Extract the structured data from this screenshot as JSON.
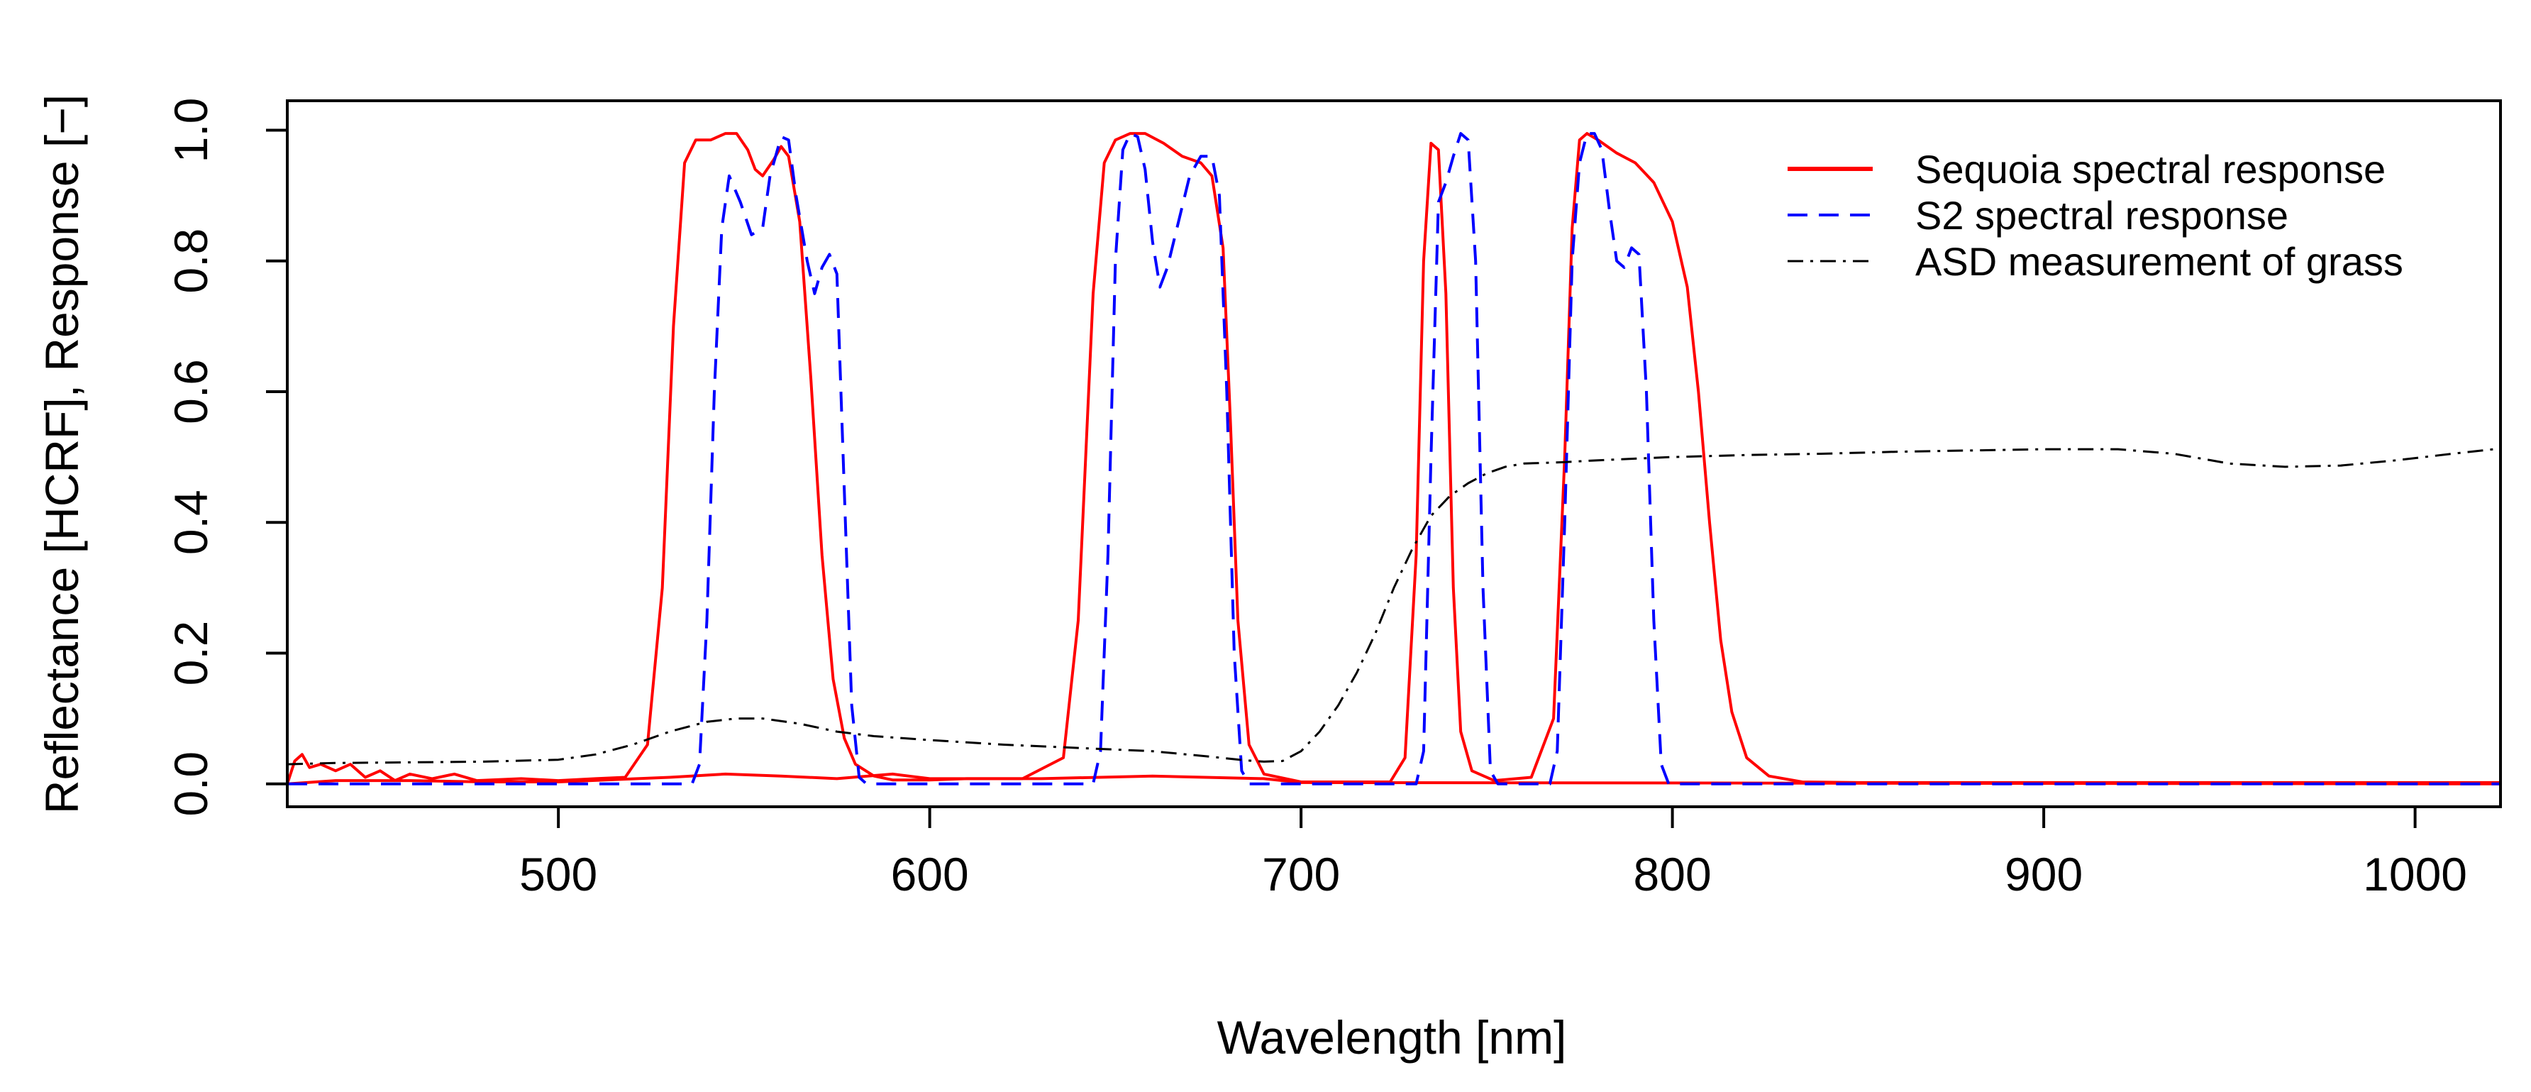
{
  "chart_data": {
    "type": "line",
    "title": "",
    "xlabel": "Wavelength [nm]",
    "ylabel": "Reflectance [HCRF], Response [−]",
    "xlim": [
      427,
      1023
    ],
    "ylim": [
      -0.035,
      1.045
    ],
    "x_ticks": [
      500,
      600,
      700,
      800,
      900,
      1000
    ],
    "x_tick_labels": [
      "500",
      "600",
      "700",
      "800",
      "900",
      "1000"
    ],
    "y_ticks": [
      0.0,
      0.2,
      0.4,
      0.6,
      0.8,
      1.0
    ],
    "y_tick_labels": [
      "0.0",
      "0.2",
      "0.4",
      "0.6",
      "0.8",
      "1.0"
    ],
    "grid": false,
    "legend_position": "top-right",
    "series": [
      {
        "name": "Sequoia spectral response",
        "color": "#ff0000",
        "dash": "solid",
        "segments": [
          [
            [
              427,
              0.0
            ],
            [
              429,
              0.035
            ],
            [
              431,
              0.045
            ],
            [
              433,
              0.025
            ],
            [
              436,
              0.03
            ],
            [
              440,
              0.02
            ],
            [
              444,
              0.03
            ],
            [
              448,
              0.01
            ],
            [
              452,
              0.02
            ],
            [
              456,
              0.005
            ],
            [
              460,
              0.015
            ],
            [
              466,
              0.008
            ],
            [
              472,
              0.015
            ],
            [
              478,
              0.005
            ],
            [
              490,
              0.008
            ],
            [
              500,
              0.005
            ],
            [
              510,
              0.008
            ],
            [
              518,
              0.01
            ],
            [
              524,
              0.06
            ],
            [
              528,
              0.3
            ],
            [
              531,
              0.7
            ],
            [
              534,
              0.95
            ],
            [
              537,
              0.985
            ],
            [
              541,
              0.985
            ],
            [
              545,
              0.995
            ],
            [
              548,
              0.995
            ],
            [
              551,
              0.97
            ],
            [
              553,
              0.94
            ],
            [
              555,
              0.93
            ],
            [
              558,
              0.955
            ],
            [
              560,
              0.975
            ],
            [
              562,
              0.96
            ],
            [
              565,
              0.86
            ],
            [
              568,
              0.62
            ],
            [
              571,
              0.35
            ],
            [
              574,
              0.16
            ],
            [
              577,
              0.07
            ],
            [
              580,
              0.03
            ],
            [
              585,
              0.012
            ],
            [
              590,
              0.006
            ],
            [
              600,
              0.006
            ],
            [
              610,
              0.008
            ],
            [
              625,
              0.008
            ],
            [
              636,
              0.04
            ],
            [
              640,
              0.25
            ],
            [
              644,
              0.75
            ],
            [
              647,
              0.95
            ],
            [
              650,
              0.985
            ],
            [
              654,
              0.995
            ],
            [
              658,
              0.995
            ],
            [
              663,
              0.98
            ],
            [
              668,
              0.96
            ],
            [
              673,
              0.95
            ],
            [
              676,
              0.93
            ],
            [
              679,
              0.82
            ],
            [
              681,
              0.55
            ],
            [
              683,
              0.25
            ],
            [
              686,
              0.06
            ],
            [
              690,
              0.015
            ],
            [
              700,
              0.003
            ],
            [
              715,
              0.003
            ],
            [
              724,
              0.003
            ],
            [
              728,
              0.04
            ],
            [
              731,
              0.35
            ],
            [
              733,
              0.8
            ],
            [
              735,
              0.98
            ],
            [
              737,
              0.97
            ],
            [
              739,
              0.75
            ],
            [
              741,
              0.3
            ],
            [
              743,
              0.08
            ],
            [
              746,
              0.02
            ],
            [
              752,
              0.005
            ],
            [
              762,
              0.01
            ],
            [
              768,
              0.1
            ],
            [
              771,
              0.5
            ],
            [
              773,
              0.85
            ],
            [
              775,
              0.985
            ],
            [
              777,
              0.995
            ],
            [
              780,
              0.985
            ],
            [
              785,
              0.965
            ],
            [
              790,
              0.95
            ],
            [
              795,
              0.92
            ],
            [
              800,
              0.86
            ],
            [
              804,
              0.76
            ],
            [
              807,
              0.6
            ],
            [
              810,
              0.4
            ],
            [
              813,
              0.22
            ],
            [
              816,
              0.11
            ],
            [
              820,
              0.04
            ],
            [
              826,
              0.012
            ],
            [
              835,
              0.003
            ],
            [
              850,
              0.002
            ],
            [
              1023,
              0.002
            ]
          ],
          [
            [
              427,
              0.0
            ],
            [
              440,
              0.005
            ],
            [
              460,
              0.005
            ],
            [
              480,
              0.003
            ],
            [
              500,
              0.003
            ],
            [
              530,
              0.01
            ],
            [
              545,
              0.015
            ],
            [
              560,
              0.012
            ],
            [
              575,
              0.008
            ],
            [
              590,
              0.015
            ],
            [
              600,
              0.008
            ],
            [
              630,
              0.008
            ],
            [
              660,
              0.012
            ],
            [
              690,
              0.008
            ],
            [
              700,
              0.002
            ],
            [
              1023,
              0.0
            ]
          ]
        ]
      },
      {
        "name": "S2 spectral response",
        "color": "#0000ff",
        "dash": "dashed",
        "segments": [
          [
            [
              427,
              0.0
            ],
            [
              536,
              0.0
            ],
            [
              538,
              0.03
            ],
            [
              540,
              0.25
            ],
            [
              542,
              0.6
            ],
            [
              544,
              0.85
            ],
            [
              546,
              0.93
            ],
            [
              549,
              0.89
            ],
            [
              552,
              0.84
            ],
            [
              555,
              0.85
            ],
            [
              557,
              0.93
            ],
            [
              560,
              0.99
            ],
            [
              562,
              0.985
            ],
            [
              564,
              0.9
            ],
            [
              567,
              0.8
            ],
            [
              569,
              0.75
            ],
            [
              571,
              0.79
            ],
            [
              573,
              0.81
            ],
            [
              575,
              0.78
            ],
            [
              577,
              0.45
            ],
            [
              579,
              0.12
            ],
            [
              581,
              0.01
            ],
            [
              583,
              0.0
            ],
            [
              644,
              0.0
            ],
            [
              646,
              0.05
            ],
            [
              648,
              0.35
            ],
            [
              650,
              0.8
            ],
            [
              652,
              0.97
            ],
            [
              654,
              0.995
            ],
            [
              656,
              0.99
            ],
            [
              658,
              0.94
            ],
            [
              660,
              0.83
            ],
            [
              662,
              0.76
            ],
            [
              664,
              0.79
            ],
            [
              667,
              0.86
            ],
            [
              670,
              0.93
            ],
            [
              673,
              0.96
            ],
            [
              676,
              0.96
            ],
            [
              678,
              0.9
            ],
            [
              680,
              0.6
            ],
            [
              682,
              0.2
            ],
            [
              684,
              0.02
            ],
            [
              686,
              0.0
            ],
            [
              731,
              0.0
            ],
            [
              733,
              0.05
            ],
            [
              735,
              0.5
            ],
            [
              737,
              0.89
            ],
            [
              739,
              0.92
            ],
            [
              741,
              0.96
            ],
            [
              743,
              0.995
            ],
            [
              745,
              0.985
            ],
            [
              747,
              0.8
            ],
            [
              749,
              0.3
            ],
            [
              751,
              0.02
            ],
            [
              753,
              0.0
            ],
            [
              767,
              0.0
            ],
            [
              769,
              0.05
            ],
            [
              771,
              0.4
            ],
            [
              773,
              0.8
            ],
            [
              775,
              0.95
            ],
            [
              777,
              0.995
            ],
            [
              779,
              0.995
            ],
            [
              781,
              0.97
            ],
            [
              783,
              0.88
            ],
            [
              785,
              0.8
            ],
            [
              787,
              0.79
            ],
            [
              789,
              0.82
            ],
            [
              791,
              0.81
            ],
            [
              793,
              0.6
            ],
            [
              795,
              0.25
            ],
            [
              797,
              0.03
            ],
            [
              799,
              0.0
            ],
            [
              1023,
              0.0
            ]
          ]
        ]
      },
      {
        "name": "ASD measurement of grass",
        "color": "#000000",
        "dash": "dashdot",
        "segments": [
          [
            [
              427,
              0.03
            ],
            [
              440,
              0.032
            ],
            [
              460,
              0.033
            ],
            [
              480,
              0.034
            ],
            [
              500,
              0.037
            ],
            [
              510,
              0.045
            ],
            [
              520,
              0.06
            ],
            [
              530,
              0.08
            ],
            [
              540,
              0.095
            ],
            [
              548,
              0.1
            ],
            [
              555,
              0.1
            ],
            [
              565,
              0.092
            ],
            [
              575,
              0.08
            ],
            [
              585,
              0.073
            ],
            [
              600,
              0.067
            ],
            [
              620,
              0.06
            ],
            [
              640,
              0.055
            ],
            [
              660,
              0.05
            ],
            [
              675,
              0.042
            ],
            [
              685,
              0.036
            ],
            [
              690,
              0.034
            ],
            [
              695,
              0.035
            ],
            [
              700,
              0.05
            ],
            [
              705,
              0.08
            ],
            [
              710,
              0.12
            ],
            [
              715,
              0.17
            ],
            [
              720,
              0.23
            ],
            [
              725,
              0.3
            ],
            [
              730,
              0.36
            ],
            [
              735,
              0.41
            ],
            [
              740,
              0.44
            ],
            [
              745,
              0.46
            ],
            [
              750,
              0.475
            ],
            [
              755,
              0.485
            ],
            [
              760,
              0.49
            ],
            [
              770,
              0.492
            ],
            [
              780,
              0.495
            ],
            [
              800,
              0.5
            ],
            [
              820,
              0.503
            ],
            [
              840,
              0.505
            ],
            [
              860,
              0.508
            ],
            [
              880,
              0.51
            ],
            [
              900,
              0.512
            ],
            [
              920,
              0.512
            ],
            [
              935,
              0.505
            ],
            [
              950,
              0.49
            ],
            [
              965,
              0.485
            ],
            [
              980,
              0.487
            ],
            [
              995,
              0.495
            ],
            [
              1010,
              0.505
            ],
            [
              1023,
              0.513
            ]
          ]
        ]
      }
    ]
  }
}
